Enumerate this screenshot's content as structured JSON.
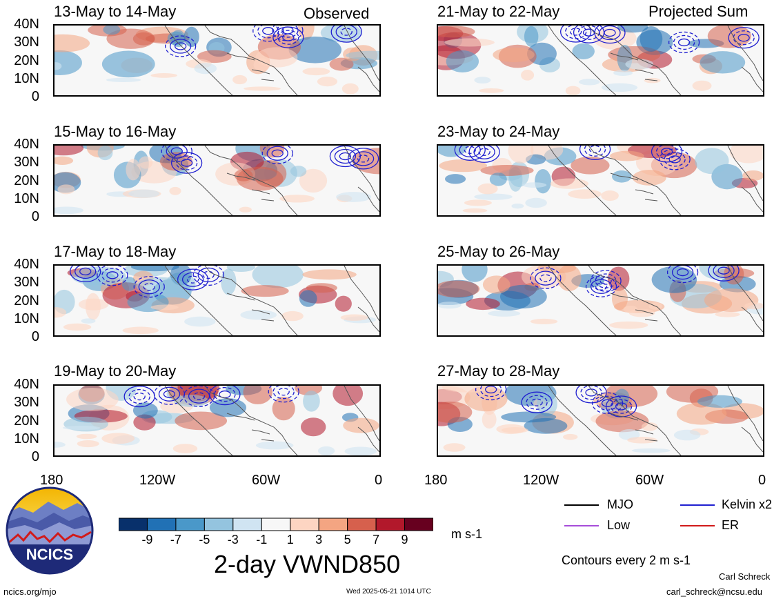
{
  "header": {
    "left_label": "Observed",
    "right_label": "Projected Sum"
  },
  "colors": {
    "colorbar": [
      "#08306b",
      "#2171b5",
      "#4a98c9",
      "#94c4df",
      "#d0e4f2",
      "#f7f7f7",
      "#fdd5c2",
      "#f4a582",
      "#d6604d",
      "#b2182b",
      "#67001f"
    ],
    "kelvin": "#1f1fd0",
    "mjo": "#000000",
    "low": "#a64dd9",
    "er": "#d11a1a",
    "coast": "#555555"
  },
  "panels": {
    "left": [
      {
        "title": "13-May to 14-May"
      },
      {
        "title": "15-May to 16-May"
      },
      {
        "title": "17-May to 18-May"
      },
      {
        "title": "19-May to 20-May"
      }
    ],
    "right": [
      {
        "title": "21-May to 22-May"
      },
      {
        "title": "23-May to 24-May"
      },
      {
        "title": "25-May to 26-May"
      },
      {
        "title": "27-May to 28-May"
      }
    ]
  },
  "axes": {
    "lat_labels": [
      "40N",
      "30N",
      "20N",
      "10N",
      "0"
    ],
    "lon_labels": [
      "180",
      "120W",
      "60W",
      "0"
    ]
  },
  "colorbar": {
    "labels": [
      "-9",
      "-7",
      "-5",
      "-3",
      "-1",
      "1",
      "3",
      "5",
      "7",
      "9"
    ],
    "units": "m s-1",
    "title": "2-day VWND850"
  },
  "legend": {
    "items": [
      {
        "label": "MJO",
        "color": "#000000"
      },
      {
        "label": "Kelvin x2",
        "color": "#1f1fd0"
      },
      {
        "label": "Low",
        "color": "#a64dd9"
      },
      {
        "label": "ER",
        "color": "#d11a1a"
      }
    ],
    "contour_note": "Contours every 2 m s-1"
  },
  "footer": {
    "logo_text": "NCICS",
    "url": "ncics.org/mjo",
    "timestamp": "Wed 2025-05-21 1014 UTC",
    "author": "Carl Schreck",
    "email": "carl_schreck@ncsu.edu"
  }
}
